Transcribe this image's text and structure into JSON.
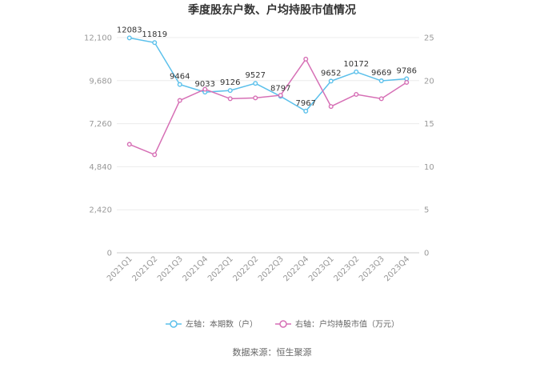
{
  "chart_data": {
    "type": "line",
    "title": "季度股东户数、户均持股市值情况",
    "categories": [
      "2021Q1",
      "2021Q2",
      "2021Q3",
      "2021Q4",
      "2022Q1",
      "2022Q2",
      "2022Q3",
      "2022Q4",
      "2023Q1",
      "2023Q2",
      "2023Q3",
      "2023Q4"
    ],
    "y_left": {
      "ticks": [
        "0",
        "2,420",
        "4,840",
        "7,260",
        "9,680",
        "12,100"
      ],
      "range": [
        0,
        12100
      ]
    },
    "y_right": {
      "ticks": [
        "0",
        "5",
        "10",
        "15",
        "20",
        "25"
      ],
      "range": [
        0,
        25
      ]
    },
    "grid": true,
    "legend_position": "bottom",
    "series": [
      {
        "name": "左轴：本期数（户）",
        "axis": "left",
        "color": "#5bc0eb",
        "values": [
          12083,
          11819,
          9464,
          9033,
          9126,
          9527,
          8797,
          7967,
          9652,
          10172,
          9669,
          9786
        ],
        "labels": [
          "12083",
          "11819",
          "9464",
          "9033",
          "9126",
          "9527",
          "8797",
          "7967",
          "9652",
          "10172",
          "9669",
          "9786"
        ]
      },
      {
        "name": "右轴：户均持股市值（万元）",
        "axis": "right",
        "color": "#d66fb5",
        "values": [
          12.6,
          11.4,
          17.7,
          19.0,
          17.9,
          18.0,
          18.3,
          22.5,
          17.0,
          18.4,
          17.9,
          19.8
        ]
      }
    ]
  },
  "source_text": "数据来源：恒生聚源"
}
